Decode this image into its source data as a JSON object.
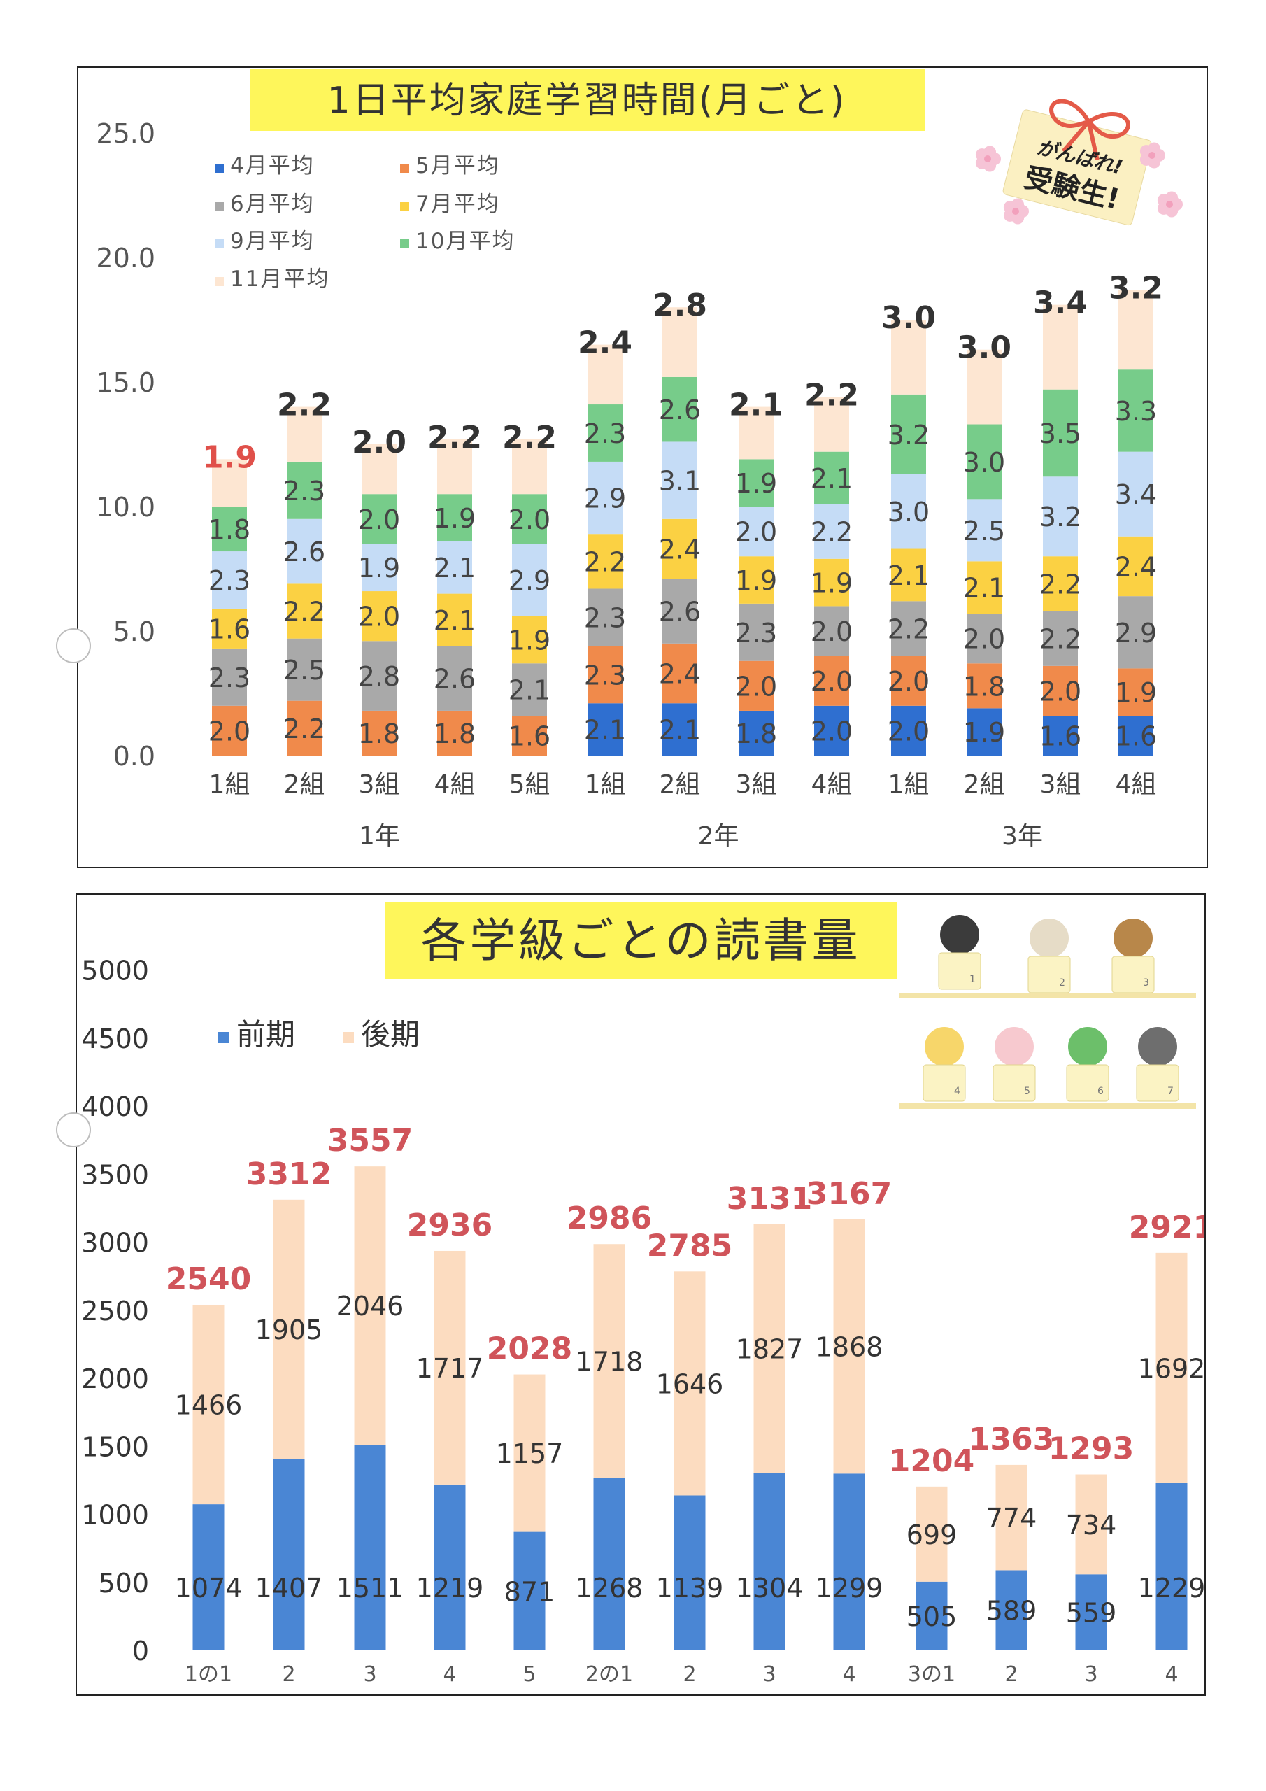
{
  "chart_data": [
    {
      "type": "bar",
      "stacked": true,
      "title": "1日平均家庭学習時間(月ごと)",
      "ylim": [
        0,
        25
      ],
      "yticks": [
        "0.0",
        "5.0",
        "10.0",
        "15.0",
        "20.0",
        "25.0"
      ],
      "legend_position": "top-left",
      "categories": [
        "1組",
        "2組",
        "3組",
        "4組",
        "5組",
        "1組",
        "2組",
        "3組",
        "4組",
        "1組",
        "2組",
        "3組",
        "4組"
      ],
      "groups": [
        {
          "label": "1年",
          "count": 5
        },
        {
          "label": "2年",
          "count": 4
        },
        {
          "label": "3年",
          "count": 4
        }
      ],
      "series": [
        {
          "name": "4月平均",
          "color": "#2f6fd0",
          "values": [
            0,
            0,
            0,
            0,
            0,
            2.1,
            2.1,
            1.8,
            2.0,
            2.0,
            1.9,
            1.6,
            1.6
          ]
        },
        {
          "name": "5月平均",
          "color": "#f08a4b",
          "values": [
            2.0,
            2.2,
            1.8,
            1.8,
            1.6,
            2.3,
            2.4,
            2.0,
            2.0,
            2.0,
            1.8,
            2.0,
            1.9
          ]
        },
        {
          "name": "6月平均",
          "color": "#a9a9a9",
          "values": [
            2.3,
            2.5,
            2.8,
            2.6,
            2.1,
            2.3,
            2.6,
            2.3,
            2.0,
            2.2,
            2.0,
            2.2,
            2.9
          ]
        },
        {
          "name": "7月平均",
          "color": "#fbd143",
          "values": [
            1.6,
            2.2,
            2.0,
            2.1,
            1.9,
            2.2,
            2.4,
            1.9,
            1.9,
            2.1,
            2.1,
            2.2,
            2.4
          ]
        },
        {
          "name": "9月平均",
          "color": "#c5dcf6",
          "values": [
            2.3,
            2.6,
            1.9,
            2.1,
            2.9,
            2.9,
            3.1,
            2.0,
            2.2,
            3.0,
            2.5,
            3.2,
            3.4
          ]
        },
        {
          "name": "10月平均",
          "color": "#77cc8a",
          "values": [
            1.8,
            2.3,
            2.0,
            1.9,
            2.0,
            2.3,
            2.6,
            1.9,
            2.1,
            3.2,
            3.0,
            3.5,
            3.3
          ]
        },
        {
          "name": "11月平均",
          "color": "#fde6d2",
          "values": [
            1.9,
            2.2,
            2.0,
            2.2,
            2.2,
            2.4,
            2.8,
            2.1,
            2.2,
            3.0,
            3.0,
            3.4,
            3.2
          ]
        }
      ],
      "highlight": {
        "category_index": 0,
        "series": "11月平均",
        "color": "#e0504a"
      }
    },
    {
      "type": "bar",
      "stacked": true,
      "title": "各学級ごとの読書量",
      "ylim": [
        0,
        5000
      ],
      "yticks": [
        "0",
        "500",
        "1000",
        "1500",
        "2000",
        "2500",
        "3000",
        "3500",
        "4000",
        "4500",
        "5000"
      ],
      "legend_position": "top-left",
      "categories": [
        "1の1",
        "2",
        "3",
        "4",
        "5",
        "2の1",
        "2",
        "3",
        "4",
        "3の1",
        "2",
        "3",
        "4"
      ],
      "series": [
        {
          "name": "前期",
          "color": "#4a86d4",
          "values": [
            1074,
            1407,
            1511,
            1219,
            871,
            1268,
            1139,
            1304,
            1299,
            505,
            589,
            559,
            1229
          ]
        },
        {
          "name": "後期",
          "color": "#fcdcc0",
          "values": [
            1466,
            1905,
            2046,
            1717,
            1157,
            1718,
            1646,
            1827,
            1868,
            699,
            774,
            734,
            1692
          ]
        }
      ],
      "totals": [
        2540,
        3312,
        3557,
        2936,
        2028,
        2986,
        2785,
        3131,
        3167,
        1204,
        1363,
        1293,
        2921
      ],
      "total_color": "#d0545a"
    }
  ],
  "decorations": {
    "charm_text_1": "がんばれ!",
    "charm_text_2": "受験生!",
    "book_numbers": [
      "1",
      "2",
      "3",
      "4",
      "5",
      "6",
      "7"
    ]
  }
}
